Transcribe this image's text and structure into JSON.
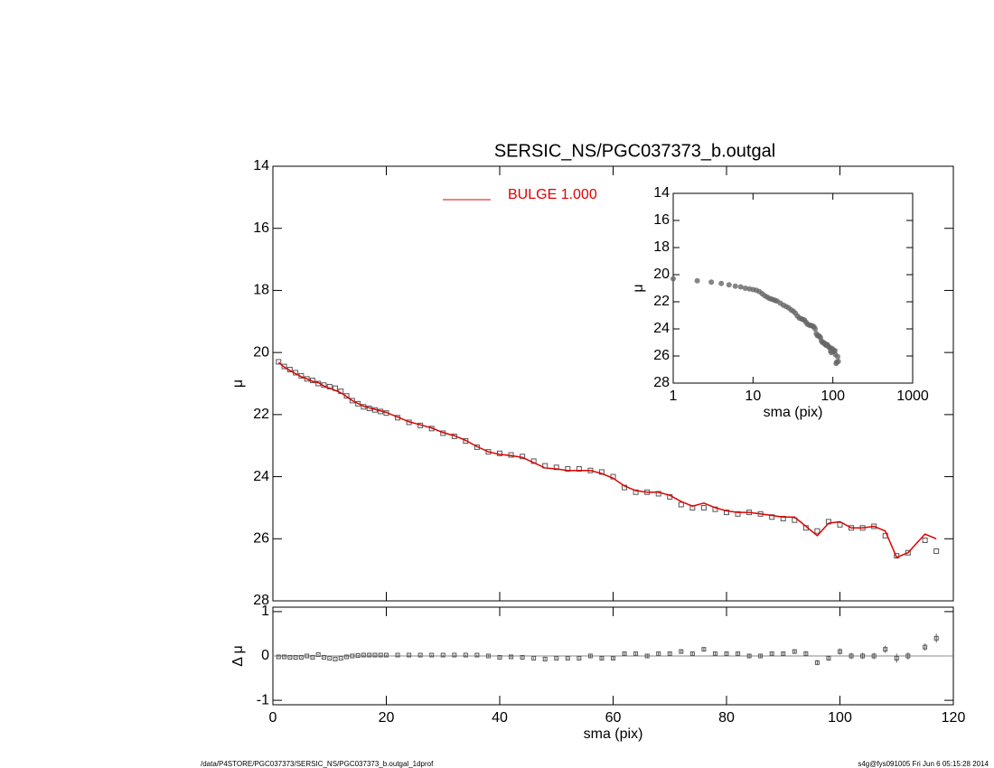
{
  "chart_data": [
    {
      "type": "scatter",
      "title": "SERSIC_NS/PGC037373_b.outgal",
      "ylabel": "μ",
      "xlim": [
        0,
        120
      ],
      "ylim": [
        28,
        14
      ],
      "xticks": [
        0,
        20,
        40,
        60,
        80,
        100,
        120
      ],
      "yticks": [
        14,
        16,
        18,
        20,
        22,
        24,
        26,
        28
      ],
      "marker_color": "#555555",
      "x": [
        1,
        2,
        3,
        4,
        5,
        6,
        7,
        8,
        9,
        10,
        11,
        12,
        13,
        14,
        15,
        16,
        17,
        18,
        19,
        20,
        22,
        24,
        26,
        28,
        30,
        32,
        34,
        36,
        38,
        40,
        42,
        44,
        46,
        48,
        50,
        52,
        54,
        56,
        58,
        60,
        62,
        64,
        66,
        68,
        70,
        72,
        74,
        76,
        78,
        80,
        82,
        84,
        86,
        88,
        90,
        92,
        94,
        96,
        98,
        100,
        102,
        104,
        106,
        108,
        110,
        112,
        115,
        117
      ],
      "values": [
        20.3,
        20.45,
        20.55,
        20.65,
        20.75,
        20.85,
        20.9,
        21.0,
        21.05,
        21.1,
        21.15,
        21.25,
        21.4,
        21.55,
        21.65,
        21.75,
        21.8,
        21.85,
        21.9,
        21.95,
        22.1,
        22.25,
        22.35,
        22.45,
        22.6,
        22.7,
        22.85,
        23.05,
        23.2,
        23.25,
        23.3,
        23.35,
        23.5,
        23.65,
        23.7,
        23.75,
        23.75,
        23.8,
        23.85,
        24.0,
        24.35,
        24.5,
        24.5,
        24.55,
        24.65,
        24.9,
        25.0,
        25.0,
        25.05,
        25.15,
        25.2,
        25.15,
        25.2,
        25.3,
        25.35,
        25.4,
        25.65,
        25.75,
        25.45,
        25.55,
        25.65,
        25.65,
        25.6,
        25.9,
        26.55,
        26.45,
        26.05,
        26.4
      ],
      "model": {
        "name": "BULGE  1.000",
        "color": "#e00000",
        "values": [
          20.32,
          20.47,
          20.58,
          20.68,
          20.78,
          20.85,
          20.93,
          20.97,
          21.08,
          21.15,
          21.22,
          21.3,
          21.42,
          21.55,
          21.64,
          21.73,
          21.78,
          21.83,
          21.88,
          21.93,
          22.08,
          22.23,
          22.33,
          22.43,
          22.58,
          22.68,
          22.83,
          23.03,
          23.2,
          23.28,
          23.32,
          23.38,
          23.55,
          23.72,
          23.75,
          23.8,
          23.8,
          23.8,
          23.9,
          24.05,
          24.3,
          24.45,
          24.5,
          24.5,
          24.6,
          24.8,
          24.95,
          24.85,
          25.0,
          25.1,
          25.15,
          25.15,
          25.2,
          25.25,
          25.3,
          25.3,
          25.6,
          25.9,
          25.5,
          25.45,
          25.65,
          25.65,
          25.6,
          25.75,
          26.6,
          26.45,
          25.85,
          26.0
        ]
      }
    },
    {
      "type": "residual",
      "xlabel": "sma (pix)",
      "ylabel": "Δ μ",
      "xlim": [
        0,
        120
      ],
      "ylim": [
        -1.1,
        1.1
      ],
      "xticks": [
        0,
        20,
        40,
        60,
        80,
        100,
        120
      ],
      "yticks": [
        -1,
        0,
        1
      ],
      "marker_color": "#555555",
      "x": [
        1,
        2,
        3,
        4,
        5,
        6,
        7,
        8,
        9,
        10,
        11,
        12,
        13,
        14,
        15,
        16,
        17,
        18,
        19,
        20,
        22,
        24,
        26,
        28,
        30,
        32,
        34,
        36,
        38,
        40,
        42,
        44,
        46,
        48,
        50,
        52,
        54,
        56,
        58,
        60,
        62,
        64,
        66,
        68,
        70,
        72,
        74,
        76,
        78,
        80,
        82,
        84,
        86,
        88,
        90,
        92,
        94,
        96,
        98,
        100,
        102,
        104,
        106,
        108,
        110,
        112,
        115,
        117
      ],
      "values": [
        -0.02,
        -0.02,
        -0.03,
        -0.03,
        -0.03,
        0,
        -0.03,
        0.03,
        -0.03,
        -0.05,
        -0.07,
        -0.05,
        -0.02,
        0,
        0.01,
        0.02,
        0.02,
        0.02,
        0.02,
        0.02,
        0.02,
        0.02,
        0.02,
        0.02,
        0.02,
        0.02,
        0.02,
        0.02,
        0,
        -0.03,
        -0.02,
        -0.03,
        -0.05,
        -0.07,
        -0.05,
        -0.05,
        -0.05,
        0,
        -0.05,
        -0.05,
        0.05,
        0.05,
        0,
        0.05,
        0.05,
        0.1,
        0.05,
        0.15,
        0.05,
        0.05,
        0.05,
        0,
        0,
        0.05,
        0.05,
        0.1,
        0.05,
        -0.15,
        -0.05,
        0.1,
        0,
        0,
        0,
        0.15,
        -0.05,
        0,
        0.2,
        0.4
      ],
      "errors": [
        0.01,
        0.01,
        0.01,
        0.01,
        0.01,
        0.01,
        0.01,
        0.01,
        0.01,
        0.01,
        0.01,
        0.01,
        0.01,
        0.01,
        0.01,
        0.01,
        0.01,
        0.01,
        0.01,
        0.01,
        0.01,
        0.01,
        0.01,
        0.01,
        0.01,
        0.01,
        0.01,
        0.01,
        0.02,
        0.02,
        0.02,
        0.02,
        0.02,
        0.02,
        0.02,
        0.02,
        0.02,
        0.03,
        0.03,
        0.03,
        0.03,
        0.03,
        0.03,
        0.03,
        0.04,
        0.04,
        0.04,
        0.04,
        0.04,
        0.04,
        0.05,
        0.05,
        0.05,
        0.05,
        0.05,
        0.05,
        0.06,
        0.06,
        0.06,
        0.07,
        0.07,
        0.07,
        0.07,
        0.08,
        0.1,
        0.08,
        0.08,
        0.1
      ]
    },
    {
      "type": "inset",
      "xlabel": "sma (pix)",
      "ylabel": "μ",
      "xlog": true,
      "xlim": [
        1,
        1000
      ],
      "ylim": [
        28,
        14
      ],
      "xticks": [
        1,
        10,
        100,
        1000
      ],
      "yticks": [
        14,
        16,
        18,
        20,
        22,
        24,
        26,
        28
      ],
      "marker_color": "#666666",
      "x": [
        1,
        2,
        3,
        4,
        5,
        6,
        7,
        8,
        9,
        10,
        11,
        12,
        13,
        14,
        15,
        16,
        17,
        18,
        19,
        20,
        22,
        24,
        26,
        28,
        30,
        32,
        34,
        36,
        38,
        40,
        42,
        44,
        46,
        48,
        50,
        52,
        54,
        56,
        58,
        60,
        62,
        64,
        66,
        68,
        70,
        72,
        74,
        76,
        78,
        80,
        82,
        84,
        86,
        88,
        90,
        92,
        94,
        96,
        98,
        100,
        102,
        104,
        106,
        108,
        110,
        112,
        115,
        117
      ],
      "values": [
        20.3,
        20.45,
        20.55,
        20.65,
        20.75,
        20.85,
        20.9,
        21.0,
        21.05,
        21.1,
        21.15,
        21.25,
        21.4,
        21.55,
        21.65,
        21.75,
        21.8,
        21.85,
        21.9,
        21.95,
        22.1,
        22.25,
        22.35,
        22.45,
        22.6,
        22.7,
        22.85,
        23.05,
        23.2,
        23.25,
        23.3,
        23.35,
        23.5,
        23.65,
        23.7,
        23.75,
        23.75,
        23.8,
        23.85,
        24.0,
        24.35,
        24.5,
        24.5,
        24.55,
        24.65,
        24.9,
        25.0,
        25.0,
        25.05,
        25.15,
        25.2,
        25.15,
        25.2,
        25.3,
        25.35,
        25.4,
        25.65,
        25.75,
        25.45,
        25.55,
        25.65,
        25.65,
        25.6,
        25.9,
        26.55,
        26.45,
        26.05,
        26.4
      ]
    }
  ],
  "footer": {
    "left": "/data/P4STORE/PGC037373/SERSIC_NS/PGC037373_b.outgal_1dprof",
    "right": "s4g@fys091005  Fri Jun  6 05:15:28 2014"
  }
}
